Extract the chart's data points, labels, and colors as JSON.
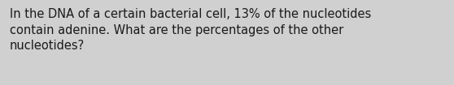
{
  "text": "In the DNA of a certain bacterial cell, 13% of the nucleotides\ncontain adenine. What are the percentages of the other\nnucleotides?",
  "background_color": "#d0d0d0",
  "text_color": "#1a1a1a",
  "font_size": 10.5,
  "fig_width": 5.58,
  "fig_height": 1.05,
  "dpi": 100
}
